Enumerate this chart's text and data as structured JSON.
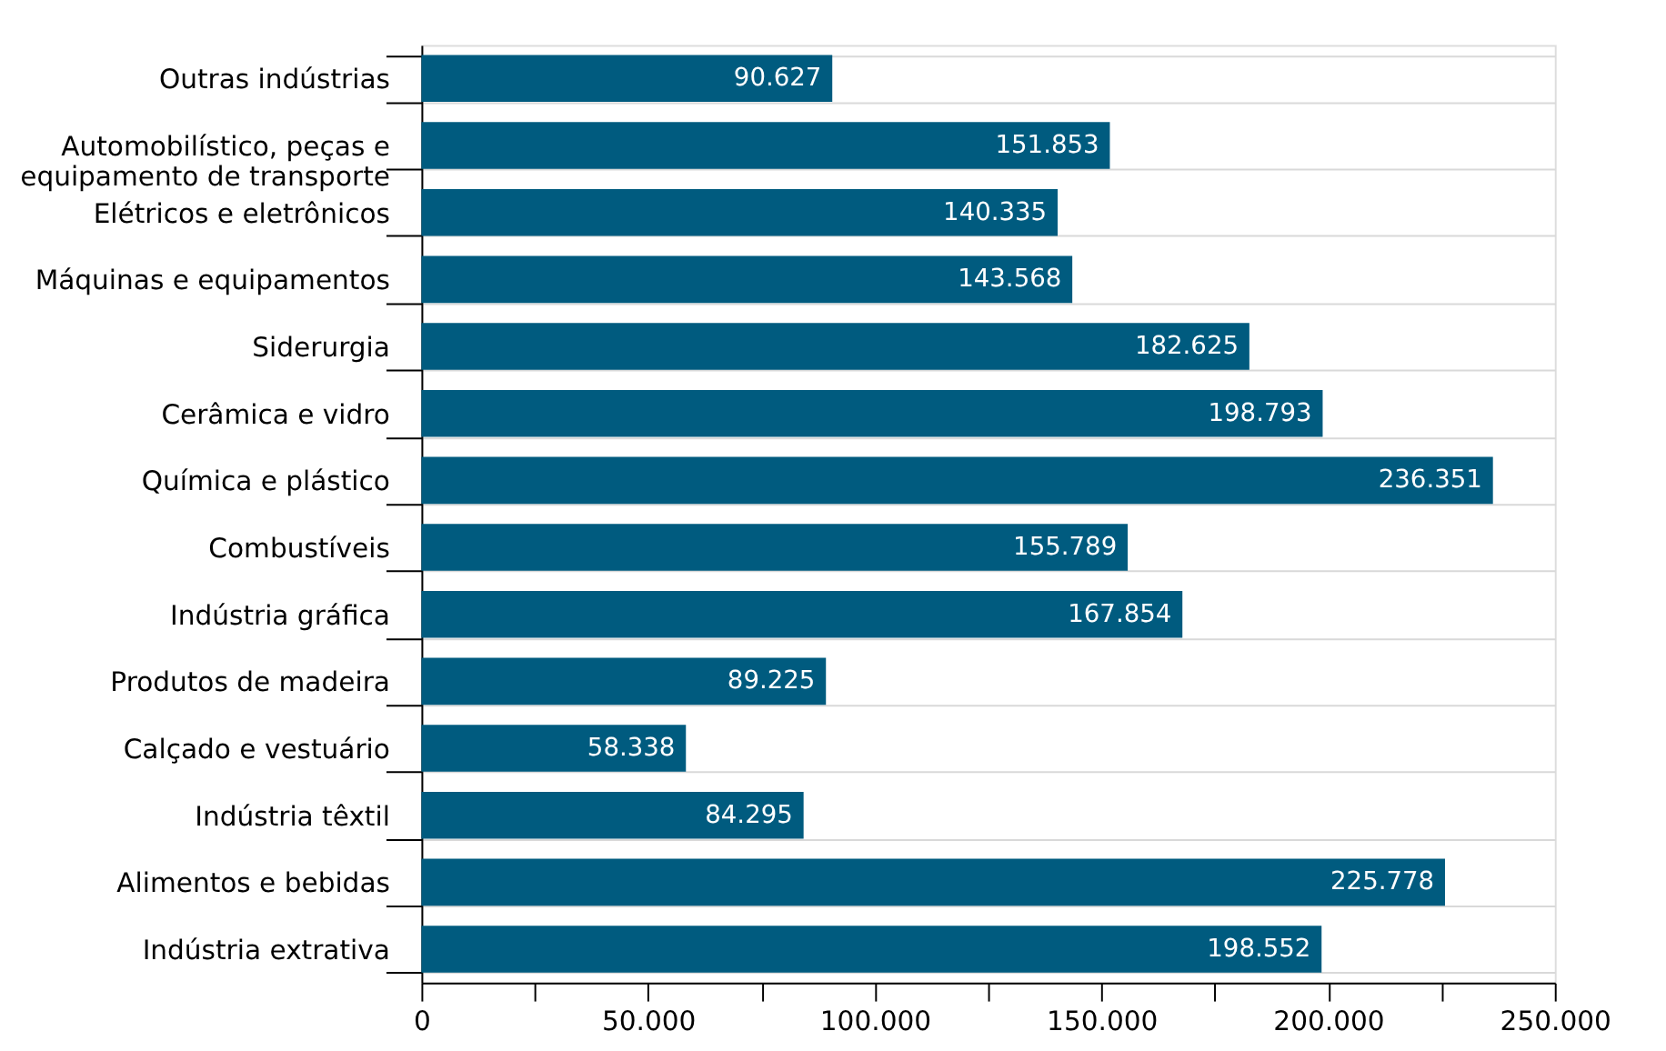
{
  "chart_data": {
    "type": "bar",
    "orientation": "horizontal",
    "categories": [
      "Outras indústrias",
      "Automobilístico, peças e equipamento de transporte",
      "Elétricos e eletrônicos",
      "Máquinas e equipamentos",
      "Siderurgia",
      "Cerâmica e vidro",
      "Química e plástico",
      "Combustíveis",
      "Indústria gráfica",
      "Produtos de madeira",
      "Calçado e vestuário",
      "Indústria têxtil",
      "Alimentos e bebidas",
      "Indústria extrativa"
    ],
    "values": [
      90627,
      151853,
      140335,
      143568,
      182625,
      198793,
      236351,
      155789,
      167854,
      89225,
      58338,
      84295,
      225778,
      198552
    ],
    "value_labels": [
      "90.627",
      "151.853",
      "140.335",
      "143.568",
      "182.625",
      "198.793",
      "236.351",
      "155.789",
      "167.854",
      "89.225",
      "58.338",
      "84.295",
      "225.778",
      "198.552"
    ],
    "color": "#005b7f",
    "xlim": [
      0,
      250000
    ],
    "xticks": [
      0,
      {
        "value": 25000,
        "label": null
      },
      {
        "value": 50000,
        "label": "50.000"
      },
      {
        "value": 75000,
        "label": null
      },
      {
        "value": 100000,
        "label": "100.000"
      },
      {
        "value": 125000,
        "label": null
      },
      {
        "value": 150000,
        "label": "150.000"
      },
      {
        "value": 175000,
        "label": null
      },
      {
        "value": 200000,
        "label": "200.000"
      },
      {
        "value": 225000,
        "label": null
      },
      {
        "value": 250000,
        "label": "250.000"
      }
    ],
    "grid": "y"
  }
}
